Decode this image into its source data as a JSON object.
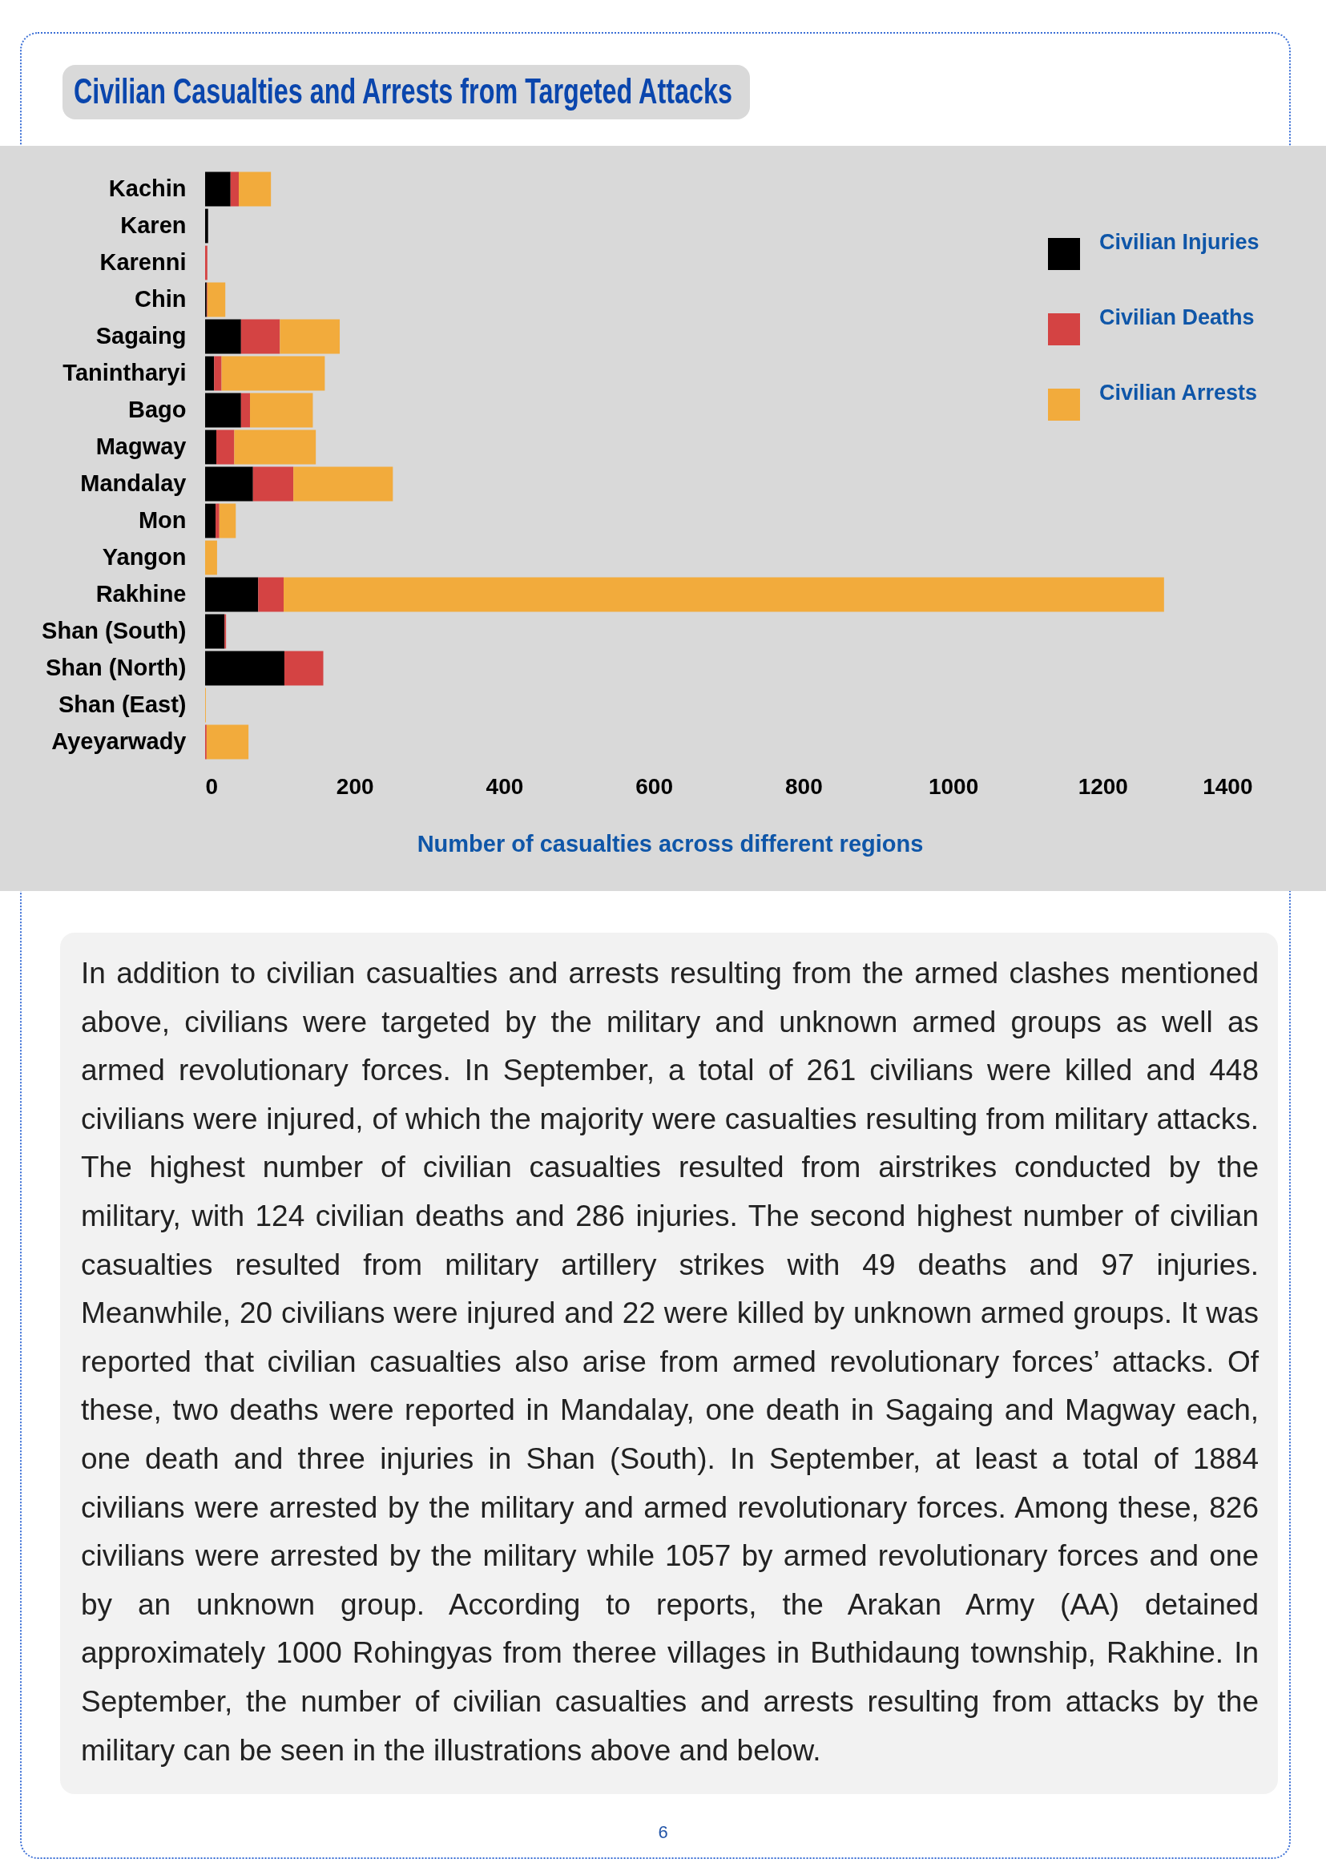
{
  "chart_data": {
    "type": "bar",
    "orientation": "horizontal",
    "stacked": true,
    "title": "Civilian Casualties and Arrests from Targeted Attacks",
    "xlabel": "Number of casualties across different regions",
    "categories": [
      "Kachin",
      "Karen",
      "Karenni",
      "Chin",
      "Sagaing",
      "Tanintharyi",
      "Bago",
      "Magway",
      "Mandalay",
      "Mon",
      "Yangon",
      "Rakhine",
      "Shan (South)",
      "Shan (North)",
      "Shan (East)",
      "Ayeyarwady"
    ],
    "series": [
      {
        "name": "Civilian Injuries",
        "color": "#000000",
        "values": [
          34,
          4,
          null,
          2,
          48,
          12,
          48,
          15,
          64,
          14,
          null,
          71,
          26,
          106,
          null,
          null
        ]
      },
      {
        "name": "Civilian Deaths",
        "color": "#d44343",
        "values": [
          11,
          null,
          3,
          1,
          52,
          10,
          12,
          24,
          54,
          5,
          null,
          34,
          2,
          52,
          null,
          2
        ]
      },
      {
        "name": "Civilian Arrests",
        "color": "#f2ab3c",
        "values": [
          43,
          null,
          null,
          24,
          80,
          138,
          84,
          109,
          133,
          22,
          16,
          1177,
          null,
          null,
          1,
          56
        ]
      }
    ],
    "xlim": [
      0,
      1400
    ],
    "xticks": [
      0,
      200,
      400,
      600,
      800,
      1000,
      1200,
      1400
    ],
    "legend": "top right",
    "annotations": [
      "In addition to civilian casualties and arrests resulting from the armed clashes mentioned above, civilians were targeted by the military and unknown armed groups as well as armed revolutionary forces. In September, a total of 261 civilians were killed and 448 civilians were injured, of which the majority were casualties resulting from military attacks. The highest number of civilian casualties resulted from airstrikes conducted by the military, with 124 civilian deaths and 286 injuries. The second highest number of civilian casualties resulted from military artillery strikes with 49 deaths and 97 injuries. Meanwhile, 20 civilians were injured and 22 were killed by unknown armed groups. It was reported that civilian casualties also arise from armed revolutionary forces’ attacks. Of these, two deaths were reported in Mandalay, one death in Sagaing and Magway each, one death and three injuries in Shan (South). In September, at least a total of 1884 civilians were arrested by the military and armed revolutionary forces. Among these, 826 civilians were arrested by the military while 1057 by armed revolutionary forces and one by an unknown group. According to reports, the Arakan Army (AA) detained approximately 1000 Rohingyas from theree villages in Buthidaung township, Rakhine. In September, the number of civilian casualties and arrests resulting from attacks by the military can be seen in the illustrations above and below.",
      "6"
    ]
  }
}
